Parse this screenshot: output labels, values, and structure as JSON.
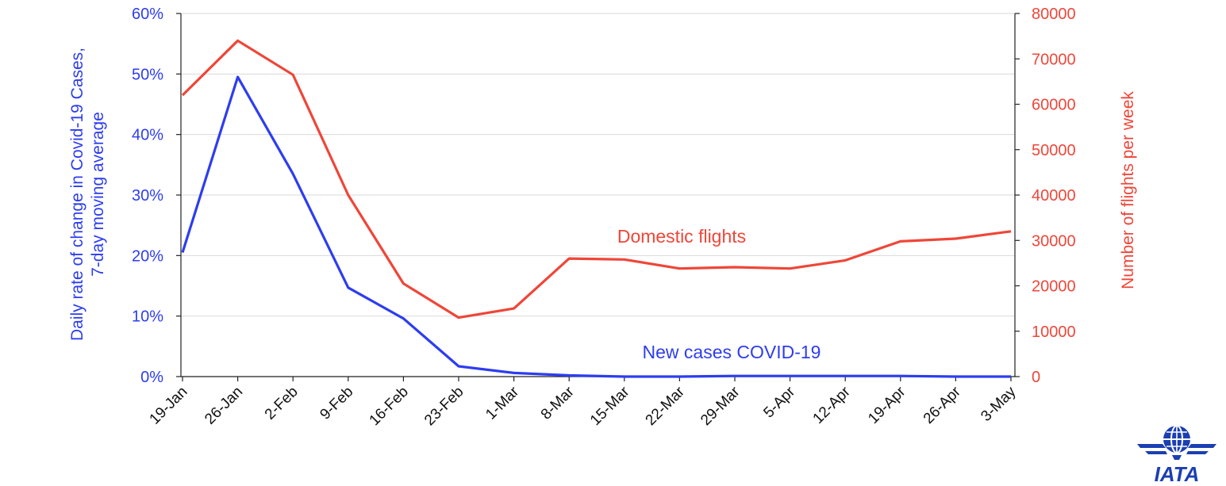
{
  "chart_data": {
    "type": "line",
    "title": "",
    "categories": [
      "19-Jan",
      "26-Jan",
      "2-Feb",
      "9-Feb",
      "16-Feb",
      "23-Feb",
      "1-Mar",
      "8-Mar",
      "15-Mar",
      "22-Mar",
      "29-Mar",
      "5-Apr",
      "12-Apr",
      "19-Apr",
      "26-Apr",
      "3-May"
    ],
    "y_left": {
      "label_lines": [
        "Daily rate of change in Covid-19 Cases,",
        "7-day moving average"
      ],
      "range": [
        0,
        0.6
      ],
      "ticks": [
        0,
        0.1,
        0.2,
        0.3,
        0.4,
        0.5,
        0.6
      ],
      "tick_labels": [
        "0%",
        "10%",
        "20%",
        "30%",
        "40%",
        "50%",
        "60%"
      ]
    },
    "y_right": {
      "label": "Number of flights per week",
      "range": [
        0,
        80000
      ],
      "ticks": [
        0,
        10000,
        20000,
        30000,
        40000,
        50000,
        60000,
        70000,
        80000
      ],
      "tick_labels": [
        "0",
        "10000",
        "20000",
        "30000",
        "40000",
        "50000",
        "60000",
        "70000",
        "80000"
      ]
    },
    "series": [
      {
        "name": "New cases COVID-19",
        "axis": "left",
        "color": "#2d3df0",
        "values": [
          0.205,
          0.495,
          0.335,
          0.147,
          0.096,
          0.017,
          0.006,
          0.002,
          0.0,
          0.0,
          0.001,
          0.001,
          0.001,
          0.001,
          0.0,
          0.0
        ]
      },
      {
        "name": "Domestic flights",
        "axis": "right",
        "color": "#ef4638",
        "values": [
          62000,
          74000,
          66500,
          40000,
          20500,
          13000,
          15000,
          26000,
          25800,
          23800,
          24100,
          23800,
          25600,
          29800,
          30400,
          32000
        ]
      }
    ],
    "grid": "horizontal",
    "legend": "inline labels"
  },
  "logo": {
    "text": "IATA",
    "color": "#1b3fb3",
    "icon": "globe-wings-icon"
  }
}
